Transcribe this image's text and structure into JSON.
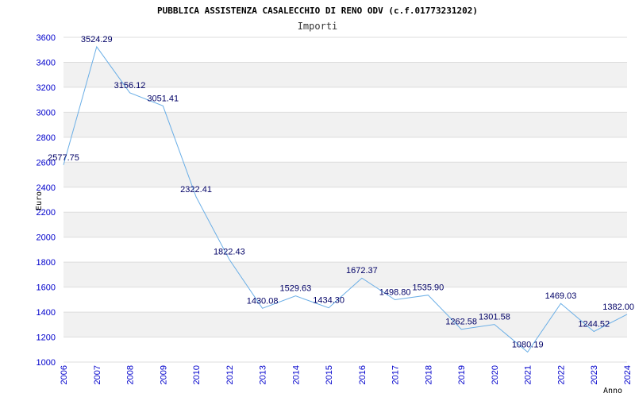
{
  "chart_data": {
    "type": "line",
    "title": "PUBBLICA ASSISTENZA CASALECCHIO DI RENO ODV (c.f.01773231202)",
    "subtitle": "Importi",
    "xlabel": "Anno",
    "ylabel": "Euro",
    "ylim": [
      1000,
      3600
    ],
    "yticks": [
      1000,
      1200,
      1400,
      1600,
      1800,
      2000,
      2200,
      2400,
      2600,
      2800,
      3000,
      3200,
      3400,
      3600
    ],
    "grid": true,
    "colors": {
      "line": "#6aaee6",
      "band": "#f1f1f1",
      "tick_text": "#0000cc",
      "label_text": "#000066"
    },
    "x": [
      "2006",
      "2007",
      "2008",
      "2009",
      "2010",
      "2012",
      "2013",
      "2014",
      "2015",
      "2016",
      "2017",
      "2018",
      "2019",
      "2020",
      "2021",
      "2022",
      "2023",
      "2024"
    ],
    "values": [
      2577.75,
      3524.29,
      3156.12,
      3051.41,
      2322.41,
      1822.43,
      1430.08,
      1529.63,
      1434.3,
      1672.37,
      1498.8,
      1535.9,
      1262.58,
      1301.58,
      1080.19,
      1469.03,
      1244.52,
      1382.0
    ],
    "labels": [
      "2577.75",
      "3524.29",
      "3156.12",
      "3051.41",
      "2322.41",
      "1822.43",
      "1430.08",
      "1529.63",
      "1434.30",
      "1672.37",
      "1498.80",
      "1535.90",
      "1262.58",
      "1301.58",
      "1080.19",
      "1469.03",
      "1244.52",
      "1382.00"
    ]
  }
}
